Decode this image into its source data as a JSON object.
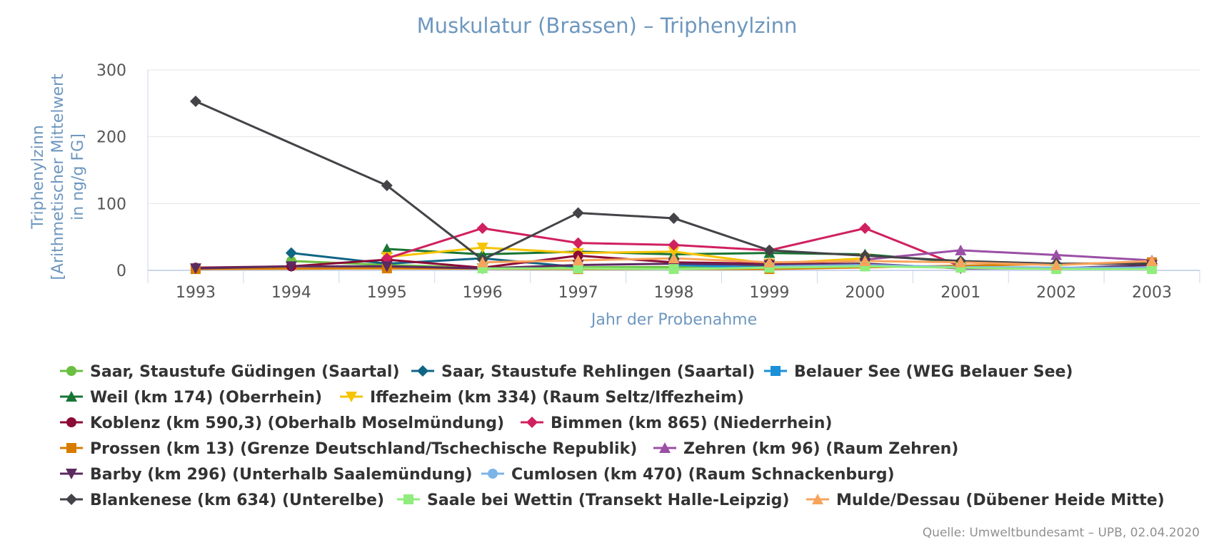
{
  "chart_data": {
    "type": "line",
    "title": "Muskulatur (Brassen) – Triphenylzinn",
    "xlabel": "Jahr der Probenahme",
    "ylabel_lines": [
      "Triphenylzinn",
      "[Arithmetischer Mittelwert",
      "in ng/g FG]"
    ],
    "categories": [
      "1993",
      "1994",
      "1995",
      "1996",
      "1997",
      "1998",
      "1999",
      "2000",
      "2001",
      "2002",
      "2003"
    ],
    "yticks": [
      "0",
      "100",
      "200",
      "300"
    ],
    "ylim": [
      0,
      300
    ],
    "grid": "horizontal",
    "legend_position": "bottom",
    "source": "Quelle: Umweltbundesamt – UPB, 02.04.2020",
    "series": [
      {
        "name": "Saar, Staustufe Güdingen (Saartal)",
        "color": "#6abf40",
        "marker": "circle",
        "values": [
          null,
          14,
          8,
          4,
          null,
          null,
          null,
          6,
          null,
          null,
          null
        ]
      },
      {
        "name": "Saar, Staustufe Rehlingen (Saartal)",
        "color": "#0f6585",
        "marker": "diamond",
        "values": [
          null,
          26,
          10,
          18,
          5,
          null,
          null,
          null,
          null,
          null,
          null
        ]
      },
      {
        "name": "Belauer See (WEG Belauer See)",
        "color": "#1a90d8",
        "marker": "square",
        "values": [
          null,
          null,
          null,
          null,
          null,
          8,
          4,
          null,
          null,
          null,
          null
        ]
      },
      {
        "name": "Weil (km 174) (Oberrhein)",
        "color": "#187534",
        "marker": "triangle-up",
        "values": [
          null,
          null,
          32,
          24,
          28,
          24,
          26,
          24,
          12,
          null,
          null
        ]
      },
      {
        "name": "Iffezheim (km 334) (Raum Seltz/Iffezheim)",
        "color": "#f6c400",
        "marker": "triangle-down",
        "values": [
          null,
          null,
          20,
          34,
          26,
          28,
          10,
          18,
          null,
          null,
          null
        ]
      },
      {
        "name": "Koblenz (km 590,3) (Oberhalb Moselmündung)",
        "color": "#8b0a36",
        "marker": "circle",
        "values": [
          4,
          6,
          16,
          4,
          22,
          12,
          10,
          14,
          null,
          null,
          null
        ]
      },
      {
        "name": "Bimmen (km 865) (Niederrhein)",
        "color": "#d0205f",
        "marker": "diamond",
        "values": [
          null,
          null,
          18,
          63,
          41,
          38,
          30,
          63,
          6,
          null,
          null
        ]
      },
      {
        "name": "Prossen (km 13) (Grenze Deutschland/Tschechische Republik)",
        "color": "#d77c00",
        "marker": "square",
        "values": [
          2,
          null,
          3,
          null,
          2,
          null,
          2,
          null,
          null,
          null,
          12
        ]
      },
      {
        "name": "Zehren (km 96) (Raum Zehren)",
        "color": "#9b4fa5",
        "marker": "triangle-up",
        "values": [
          null,
          null,
          null,
          null,
          null,
          null,
          null,
          16,
          30,
          23,
          15
        ]
      },
      {
        "name": "Barby (km 296) (Unterhalb Saalemündung)",
        "color": "#5b2a60",
        "marker": "triangle-down",
        "values": [
          3,
          6,
          6,
          3,
          8,
          10,
          8,
          10,
          3,
          3,
          8
        ]
      },
      {
        "name": "Cumlosen (km 470) (Raum Schnackenburg)",
        "color": "#7cb4e8",
        "marker": "circle",
        "values": [
          null,
          null,
          null,
          null,
          null,
          null,
          6,
          8,
          5,
          4,
          4
        ]
      },
      {
        "name": "Blankenese (km 634) (Unterelbe)",
        "color": "#434348",
        "marker": "diamond",
        "values": [
          253,
          null,
          127,
          16,
          86,
          78,
          30,
          22,
          14,
          10,
          10
        ]
      },
      {
        "name": "Saale bei Wettin (Transekt Halle-Leipzig)",
        "color": "#90ed7d",
        "marker": "square",
        "values": [
          null,
          null,
          null,
          3,
          3,
          2,
          4,
          6,
          4,
          2,
          2
        ]
      },
      {
        "name": "Mulde/Dessau (Dübener Heide Mitte)",
        "color": "#f7a35c",
        "marker": "triangle-up",
        "values": [
          null,
          null,
          null,
          12,
          15,
          18,
          12,
          14,
          12,
          8,
          14
        ]
      }
    ]
  }
}
